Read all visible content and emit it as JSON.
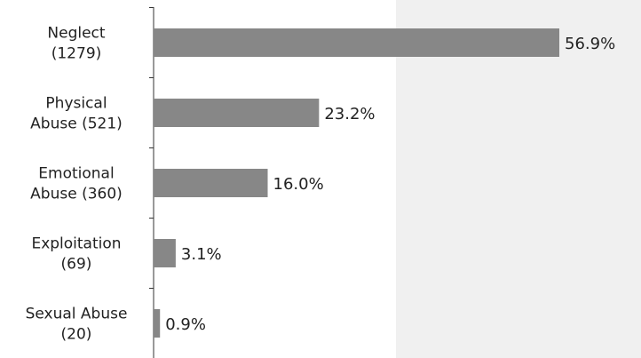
{
  "chart_data": {
    "type": "bar",
    "orientation": "horizontal",
    "categories": [
      [
        "Neglect",
        "(1279)"
      ],
      [
        "Physical",
        "Abuse (521)"
      ],
      [
        "Emotional",
        "Abuse (360)"
      ],
      [
        "Exploitation",
        "(69)"
      ],
      [
        "Sexual Abuse",
        "(20)"
      ]
    ],
    "values": [
      56.9,
      23.2,
      16.0,
      3.1,
      0.9
    ],
    "value_labels": [
      "56.9%",
      "23.2%",
      "16.0%",
      "3.1%",
      "0.9%"
    ],
    "title": "",
    "xlabel": "",
    "ylabel": "",
    "xlim": [
      0,
      60
    ],
    "grid": false,
    "colors": {
      "bar": "#878787",
      "shaded_region": "#f0f0f0",
      "axis": "#333333",
      "text": "#222222"
    }
  }
}
